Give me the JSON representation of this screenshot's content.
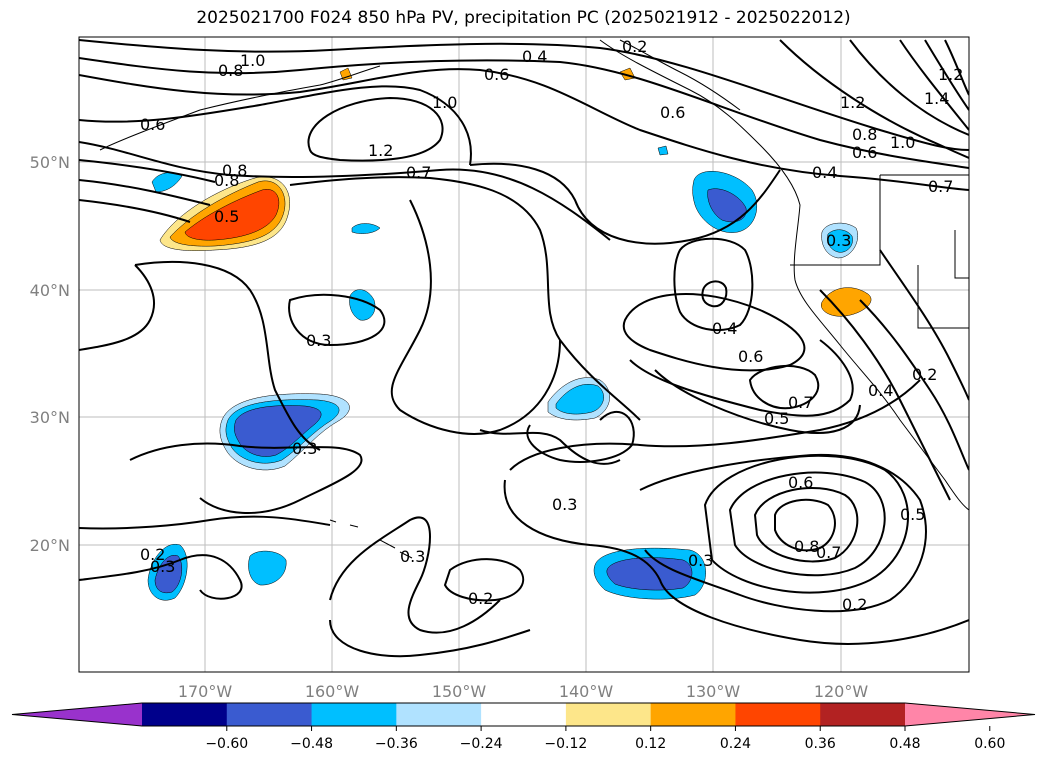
{
  "title": "2025021700 F024 850 hPa PV, precipitation PC (2025021912 - 2025022012)",
  "lat_ticks": [
    "50°N",
    "40°N",
    "30°N",
    "20°N"
  ],
  "lon_ticks": [
    "170°W",
    "160°W",
    "150°W",
    "140°W",
    "130°W",
    "120°W"
  ],
  "contour_labels": [
    "1.0",
    "0.8",
    "0.6",
    "1.0",
    "1.2",
    "0.4",
    "0.6",
    "0.8",
    "0.7",
    "0.5",
    "0.3",
    "0.3",
    "0.3",
    "0.2",
    "0.3",
    "0.3",
    "0.2",
    "0.3",
    "0.4",
    "0.6",
    "0.7",
    "0.5",
    "0.6",
    "0.8",
    "0.7",
    "0.5",
    "0.2",
    "0.4",
    "0.3",
    "1.2",
    "1.4",
    "1.2",
    "0.8",
    "0.6",
    "1.0",
    "0.7",
    "0.4",
    "0.2",
    "0.2",
    "0.6",
    "0.8"
  ],
  "colorbar": {
    "ticks": [
      "−0.60",
      "−0.48",
      "−0.36",
      "−0.24",
      "−0.12",
      "0.12",
      "0.24",
      "0.36",
      "0.48",
      "0.60"
    ],
    "colors": [
      "#9932cc",
      "#00008b",
      "#3a5bd0",
      "#00bfff",
      "#b0e2ff",
      "#ffffff",
      "#fde68a",
      "#ffa500",
      "#ff4500",
      "#b22222",
      "#ff85a8"
    ]
  }
}
